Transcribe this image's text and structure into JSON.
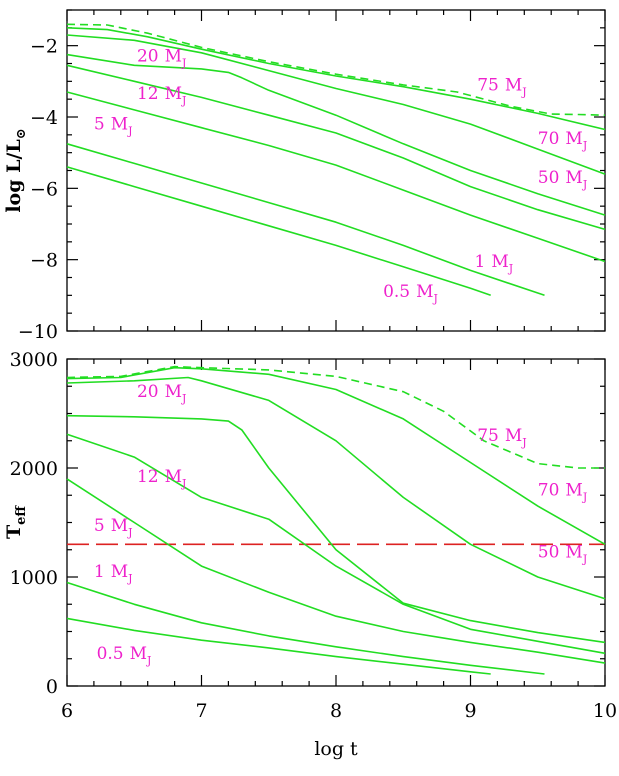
{
  "colors": {
    "track": "#22dd22",
    "label": "#ee22cc",
    "reference_line": "#dd2222",
    "axis": "#000000"
  },
  "chart_data": [
    {
      "id": "top",
      "type": "line",
      "ylabel_main": "log L/L",
      "ylabel_sub": "⊙",
      "xlim": [
        6,
        10
      ],
      "ylim": [
        -10,
        -1
      ],
      "x_ticks": [
        "6",
        "7",
        "8",
        "9",
        "10"
      ],
      "y_ticks": [
        -10,
        -8,
        -6,
        -4,
        -2
      ],
      "y_tick_labels": [
        "−10",
        "−8",
        "−6",
        "−4",
        "−2"
      ],
      "series": [
        {
          "mass": "75",
          "style": "dashed",
          "x": [
            6,
            6.3,
            6.6,
            7,
            7.5,
            8,
            8.5,
            8.9,
            9.3,
            9.6,
            9.8,
            10
          ],
          "y": [
            -1.4,
            -1.42,
            -1.65,
            -2.05,
            -2.45,
            -2.8,
            -3.1,
            -3.3,
            -3.7,
            -3.92,
            -3.93,
            -3.95
          ]
        },
        {
          "mass": "70",
          "style": "solid",
          "x": [
            6,
            6.3,
            6.6,
            7,
            7.5,
            8,
            8.5,
            9,
            9.5,
            10
          ],
          "y": [
            -1.5,
            -1.55,
            -1.75,
            -2.1,
            -2.5,
            -2.85,
            -3.15,
            -3.5,
            -3.9,
            -4.35
          ]
        },
        {
          "mass": "50",
          "style": "solid",
          "x": [
            6,
            6.5,
            7,
            7.5,
            8,
            8.5,
            9,
            9.5,
            10
          ],
          "y": [
            -1.7,
            -1.85,
            -2.2,
            -2.7,
            -3.2,
            -3.65,
            -4.2,
            -4.9,
            -5.6
          ]
        },
        {
          "mass": "20",
          "style": "solid",
          "x": [
            6,
            6.5,
            7,
            7.2,
            7.3,
            7.5,
            8,
            8.5,
            9,
            9.5,
            10
          ],
          "y": [
            -2.25,
            -2.55,
            -2.65,
            -2.75,
            -2.9,
            -3.25,
            -3.95,
            -4.75,
            -5.5,
            -6.15,
            -6.75
          ]
        },
        {
          "mass": "12",
          "style": "solid",
          "x": [
            6,
            6.5,
            7,
            7.5,
            8,
            8.5,
            9,
            9.5,
            10
          ],
          "y": [
            -2.55,
            -3.0,
            -3.45,
            -3.95,
            -4.45,
            -5.15,
            -5.95,
            -6.6,
            -7.15
          ]
        },
        {
          "mass": "5",
          "style": "solid",
          "x": [
            6,
            6.5,
            7,
            7.5,
            8,
            8.5,
            9,
            9.5,
            10
          ],
          "y": [
            -3.3,
            -3.8,
            -4.3,
            -4.8,
            -5.35,
            -6.05,
            -6.75,
            -7.4,
            -8.05
          ]
        },
        {
          "mass": "1",
          "style": "solid",
          "x": [
            6,
            6.5,
            7,
            7.5,
            8,
            8.5,
            9,
            9.55
          ],
          "y": [
            -4.75,
            -5.3,
            -5.85,
            -6.4,
            -6.95,
            -7.6,
            -8.3,
            -9.0
          ]
        },
        {
          "mass": "0.5",
          "style": "solid",
          "x": [
            6,
            6.5,
            7,
            7.5,
            8,
            8.5,
            9,
            9.15
          ],
          "y": [
            -5.4,
            -5.95,
            -6.5,
            -7.05,
            -7.6,
            -8.2,
            -8.8,
            -9.0
          ]
        }
      ],
      "labels": [
        {
          "num": "75",
          "x": 9.05,
          "y": -3.25
        },
        {
          "num": "20",
          "x": 6.52,
          "y": -2.45
        },
        {
          "num": "12",
          "x": 6.52,
          "y": -3.5
        },
        {
          "num": "70",
          "x": 9.5,
          "y": -4.75
        },
        {
          "num": "5",
          "x": 6.2,
          "y": -4.35
        },
        {
          "num": "50",
          "x": 9.5,
          "y": -5.85
        },
        {
          "num": "1",
          "x": 9.03,
          "y": -8.2
        },
        {
          "num": "0.5",
          "x": 8.35,
          "y": -9.05
        }
      ]
    },
    {
      "id": "bottom",
      "type": "line",
      "ylabel_main": "T",
      "ylabel_sub": "eff",
      "xlabel": "log t",
      "xlim": [
        6,
        10
      ],
      "ylim": [
        0,
        3000
      ],
      "x_ticks": [
        "6",
        "7",
        "8",
        "9",
        "10"
      ],
      "y_ticks": [
        0,
        1000,
        2000,
        3000
      ],
      "y_tick_labels": [
        "0",
        "1000",
        "2000",
        "3000"
      ],
      "reference_line": {
        "y": 1300,
        "style": "long-dashed"
      },
      "series": [
        {
          "mass": "75",
          "style": "dashed",
          "x": [
            6,
            6.4,
            6.8,
            7,
            7.5,
            8,
            8.5,
            8.8,
            9.1,
            9.5,
            9.8,
            10
          ],
          "y": [
            2830,
            2840,
            2930,
            2920,
            2900,
            2840,
            2700,
            2520,
            2250,
            2040,
            2000,
            2000
          ]
        },
        {
          "mass": "70",
          "style": "solid",
          "x": [
            6,
            6.4,
            6.8,
            7,
            7.5,
            8,
            8.5,
            9,
            9.5,
            10
          ],
          "y": [
            2820,
            2830,
            2920,
            2910,
            2860,
            2720,
            2450,
            2050,
            1650,
            1300
          ]
        },
        {
          "mass": "50",
          "style": "solid",
          "x": [
            6,
            6.5,
            6.9,
            7,
            7.5,
            8,
            8.5,
            9,
            9.5,
            10
          ],
          "y": [
            2780,
            2800,
            2830,
            2800,
            2620,
            2250,
            1730,
            1300,
            1000,
            800
          ]
        },
        {
          "mass": "20",
          "style": "solid",
          "x": [
            6,
            6.5,
            7,
            7.2,
            7.3,
            7.5,
            8,
            8.5,
            9,
            9.5,
            10
          ],
          "y": [
            2480,
            2470,
            2450,
            2430,
            2350,
            2000,
            1250,
            760,
            600,
            490,
            400
          ]
        },
        {
          "mass": "12",
          "style": "solid",
          "x": [
            6,
            6.5,
            7,
            7.5,
            8,
            8.5,
            9,
            9.5,
            10
          ],
          "y": [
            2310,
            2100,
            1730,
            1530,
            1100,
            750,
            520,
            410,
            300
          ]
        },
        {
          "mass": "5",
          "style": "solid",
          "x": [
            6,
            6.5,
            7,
            7.5,
            8,
            8.5,
            9,
            9.5,
            10
          ],
          "y": [
            1900,
            1500,
            1100,
            860,
            640,
            500,
            400,
            310,
            210
          ]
        },
        {
          "mass": "1",
          "style": "solid",
          "x": [
            6,
            6.5,
            7,
            7.5,
            8,
            8.5,
            9,
            9.55
          ],
          "y": [
            950,
            750,
            580,
            460,
            360,
            270,
            190,
            110
          ]
        },
        {
          "mass": "0.5",
          "style": "solid",
          "x": [
            6,
            6.5,
            7,
            7.5,
            8,
            8.5,
            9,
            9.15
          ],
          "y": [
            620,
            510,
            420,
            350,
            270,
            200,
            130,
            110
          ]
        }
      ],
      "labels": [
        {
          "num": "20",
          "x": 6.52,
          "y": 2650
        },
        {
          "num": "75",
          "x": 9.05,
          "y": 2250
        },
        {
          "num": "12",
          "x": 6.52,
          "y": 1870
        },
        {
          "num": "70",
          "x": 9.5,
          "y": 1750
        },
        {
          "num": "5",
          "x": 6.2,
          "y": 1420
        },
        {
          "num": "50",
          "x": 9.5,
          "y": 1180
        },
        {
          "num": "1",
          "x": 6.2,
          "y": 1000
        },
        {
          "num": "0.5",
          "x": 6.22,
          "y": 250
        }
      ]
    }
  ]
}
